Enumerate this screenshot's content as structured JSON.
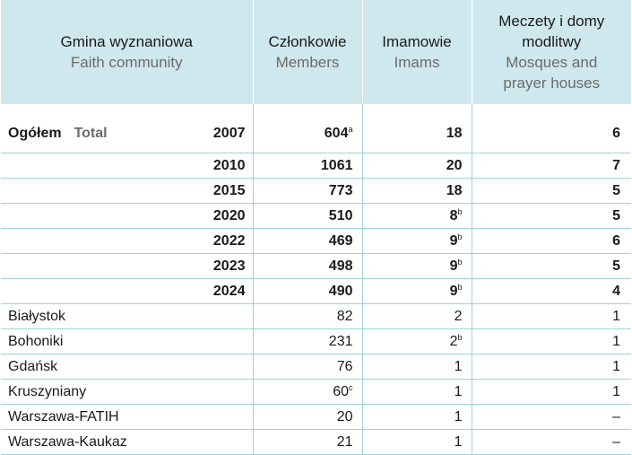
{
  "header": {
    "community_pl": "Gmina wyznaniowa",
    "community_en": "Faith community",
    "members_pl": "Członkowie",
    "members_en": "Members",
    "imams_pl": "Imamowie",
    "imams_en": "Imams",
    "mosques_pl": "Meczety i domy modlitwy",
    "mosques_en": "Mosques and prayer houses"
  },
  "total": {
    "label_pl": "Ogółem",
    "label_en": "Total"
  },
  "years": [
    {
      "year": "2007",
      "members": "604",
      "members_note": "a",
      "imams": "18",
      "imams_note": "",
      "mosques": "6"
    },
    {
      "year": "2010",
      "members": "1061",
      "members_note": "",
      "imams": "20",
      "imams_note": "",
      "mosques": "7"
    },
    {
      "year": "2015",
      "members": "773",
      "members_note": "",
      "imams": "18",
      "imams_note": "",
      "mosques": "5"
    },
    {
      "year": "2020",
      "members": "510",
      "members_note": "",
      "imams": "8",
      "imams_note": "b",
      "mosques": "5"
    },
    {
      "year": "2022",
      "members": "469",
      "members_note": "",
      "imams": "9",
      "imams_note": "b",
      "mosques": "6"
    },
    {
      "year": "2023",
      "members": "498",
      "members_note": "",
      "imams": "9",
      "imams_note": "b",
      "mosques": "5"
    },
    {
      "year": "2024",
      "members": "490",
      "members_note": "",
      "imams": "9",
      "imams_note": "b",
      "mosques": "4"
    }
  ],
  "communities": [
    {
      "name": "Białystok",
      "members": "82",
      "members_note": "",
      "imams": "2",
      "imams_note": "",
      "mosques": "1"
    },
    {
      "name": "Bohoniki",
      "members": "231",
      "members_note": "",
      "imams": "2",
      "imams_note": "b",
      "mosques": "1"
    },
    {
      "name": "Gdańsk",
      "members": "76",
      "members_note": "",
      "imams": "1",
      "imams_note": "",
      "mosques": "1"
    },
    {
      "name": "Kruszyniany",
      "members": "60",
      "members_note": "c",
      "imams": "1",
      "imams_note": "",
      "mosques": "1"
    },
    {
      "name": "Warszawa-FATIH",
      "members": "20",
      "members_note": "",
      "imams": "1",
      "imams_note": "",
      "mosques": "–"
    },
    {
      "name": "Warszawa-Kaukaz",
      "members": "21",
      "members_note": "",
      "imams": "1",
      "imams_note": "",
      "mosques": "–"
    }
  ]
}
